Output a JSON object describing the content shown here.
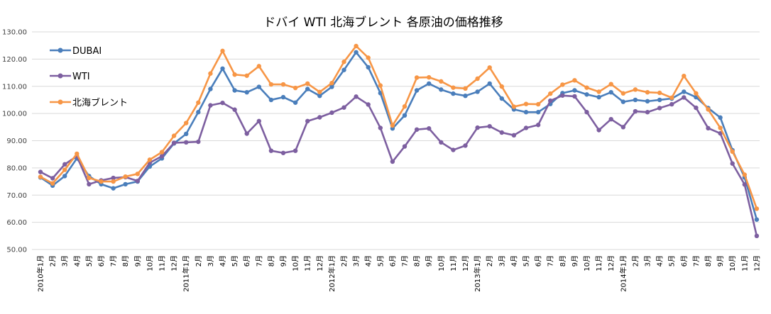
{
  "chart_data": {
    "type": "line",
    "title": "ドバイ WTI 北海ブレント 各原油の価格推移",
    "xlabel": "",
    "ylabel": "",
    "ylim": [
      50,
      130
    ],
    "yticks": [
      "50.00",
      "60.00",
      "70.00",
      "80.00",
      "90.00",
      "100.00",
      "110.00",
      "120.00",
      "130.00"
    ],
    "grid": true,
    "legend_position": "top-left",
    "categories": [
      "2010年1月",
      "2月",
      "3月",
      "4月",
      "5月",
      "6月",
      "7月",
      "8月",
      "9月",
      "10月",
      "11月",
      "12月",
      "2011年1月",
      "2月",
      "3月",
      "4月",
      "5月",
      "6月",
      "7月",
      "8月",
      "9月",
      "10月",
      "11月",
      "12月",
      "2012年1月",
      "2月",
      "3月",
      "4月",
      "5月",
      "6月",
      "7月",
      "8月",
      "9月",
      "10月",
      "11月",
      "12月",
      "2013年1月",
      "2月",
      "3月",
      "4月",
      "5月",
      "6月",
      "7月",
      "8月",
      "9月",
      "10月",
      "11月",
      "12月",
      "2014年1月",
      "2月",
      "3月",
      "4月",
      "5月",
      "6月",
      "7月",
      "8月",
      "9月",
      "10月",
      "11月",
      "12月"
    ],
    "series": [
      {
        "name": "DUBAI",
        "color": "#4a7ebb",
        "values": [
          76.5,
          73.5,
          77.0,
          83.5,
          77.0,
          74.0,
          72.5,
          74.0,
          75.0,
          80.5,
          83.5,
          89.0,
          92.5,
          100.5,
          109.0,
          116.5,
          108.5,
          107.8,
          109.8,
          105.0,
          106.0,
          104.0,
          109.0,
          106.5,
          109.8,
          116.0,
          122.5,
          117.0,
          107.5,
          94.5,
          99.3,
          108.5,
          111.0,
          108.8,
          107.3,
          106.5,
          108.0,
          111.0,
          105.5,
          101.5,
          100.5,
          100.5,
          103.5,
          107.5,
          108.5,
          107.0,
          106.0,
          107.8,
          104.3,
          105.0,
          104.5,
          105.0,
          105.5,
          108.0,
          106.0,
          102.0,
          98.5,
          86.5,
          76.5,
          61.0
        ]
      },
      {
        "name": "WTI",
        "color": "#7d5fa0",
        "values": [
          78.5,
          76.2,
          81.3,
          84.3,
          74.0,
          75.4,
          76.3,
          76.6,
          75.2,
          81.9,
          84.3,
          89.2,
          89.4,
          89.6,
          103.0,
          103.9,
          101.4,
          92.6,
          97.2,
          86.3,
          85.5,
          86.3,
          97.2,
          98.6,
          100.3,
          102.2,
          106.2,
          103.3,
          94.7,
          82.3,
          87.9,
          94.1,
          94.5,
          89.4,
          86.6,
          88.2,
          94.8,
          95.3,
          93.0,
          92.0,
          94.7,
          95.8,
          104.7,
          106.6,
          106.3,
          100.5,
          93.9,
          97.9,
          95.0,
          100.8,
          100.5,
          102.0,
          103.4,
          105.9,
          102.1,
          94.6,
          92.7,
          81.6,
          73.9,
          55.0
        ]
      },
      {
        "name": "北海ブレント",
        "color": "#f79646",
        "values": [
          76.7,
          74.3,
          79.3,
          85.2,
          76.3,
          75.0,
          75.0,
          76.8,
          77.8,
          83.0,
          85.8,
          91.8,
          96.5,
          104.0,
          114.7,
          123.0,
          114.3,
          113.9,
          117.4,
          110.7,
          110.7,
          109.4,
          111.0,
          107.9,
          111.2,
          119.0,
          124.8,
          120.5,
          110.3,
          95.6,
          102.6,
          113.2,
          113.3,
          111.8,
          109.5,
          109.2,
          112.8,
          116.9,
          109.9,
          102.5,
          103.5,
          103.4,
          107.3,
          110.6,
          112.2,
          109.5,
          108.0,
          110.8,
          107.4,
          108.8,
          107.8,
          107.6,
          105.8,
          113.8,
          107.4,
          101.5,
          94.7,
          86.0,
          77.5,
          65.0
        ]
      }
    ]
  }
}
